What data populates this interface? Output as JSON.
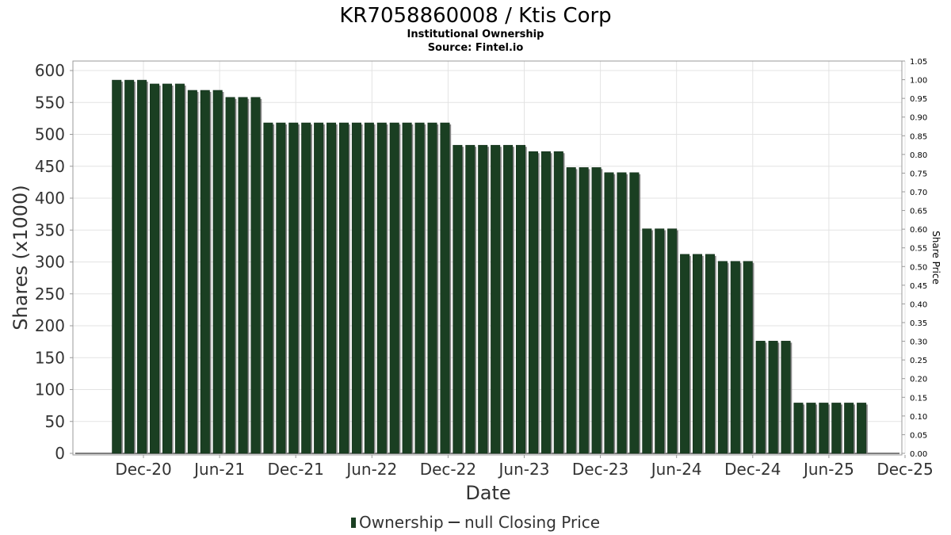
{
  "chart_data": {
    "type": "bar",
    "title": "KR7058860008 / Ktis Corp",
    "subtitle_1": "Institutional Ownership",
    "subtitle_2": "Source: Fintel.io",
    "xlabel": "Date",
    "ylabel": "Shares (x1000)",
    "y2label": "Share Price",
    "ylim": [
      0,
      610
    ],
    "y_ticks": [
      "0",
      "50",
      "100",
      "150",
      "200",
      "250",
      "300",
      "350",
      "400",
      "450",
      "500",
      "550",
      "600"
    ],
    "y2lim": [
      0,
      1.05
    ],
    "y2_ticks": [
      "0.00",
      "0.05",
      "0.10",
      "0.15",
      "0.20",
      "0.25",
      "0.30",
      "0.35",
      "0.40",
      "0.45",
      "0.50",
      "0.55",
      "0.60",
      "0.65",
      "0.70",
      "0.75",
      "0.80",
      "0.85",
      "0.90",
      "0.95",
      "1.00",
      "1.05"
    ],
    "x_ticks": [
      "Dec-20",
      "Jun-21",
      "Dec-21",
      "Jun-22",
      "Dec-22",
      "Jun-23",
      "Dec-23",
      "Jun-24",
      "Dec-24",
      "Jun-25",
      "Dec-25"
    ],
    "grid": true,
    "legend": [
      {
        "label": "Ownership",
        "marker": "bar"
      },
      {
        "label": "null Closing Price",
        "marker": "line"
      }
    ],
    "legend_position": "bottom",
    "bar_color": "#1a3f22",
    "shadow_color": "#8a8a8a",
    "series": [
      {
        "name": "Ownership",
        "values": [
          585,
          585,
          585,
          579,
          579,
          579,
          569,
          569,
          569,
          558,
          558,
          558,
          518,
          518,
          518,
          518,
          518,
          518,
          518,
          518,
          518,
          518,
          518,
          518,
          518,
          518,
          518,
          483,
          483,
          483,
          483,
          483,
          483,
          473,
          473,
          473,
          448,
          448,
          448,
          440,
          440,
          440,
          352,
          352,
          352,
          312,
          312,
          312,
          301,
          301,
          301,
          176,
          176,
          176,
          79,
          79,
          79,
          79,
          79,
          79
        ]
      }
    ]
  }
}
